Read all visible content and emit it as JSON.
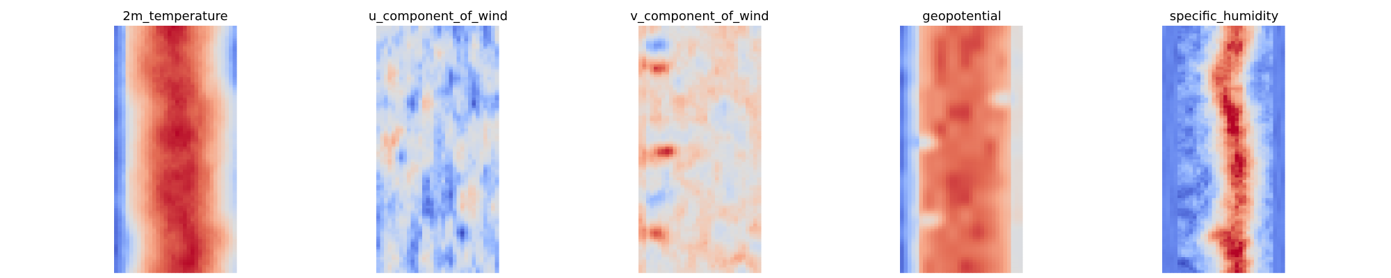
{
  "chart_data": {
    "type": "heatmap",
    "colormap": "coolwarm",
    "colormap_stops": [
      "#3b4cc0",
      "#6788ee",
      "#9abbff",
      "#c9d7f0",
      "#dddddd",
      "#f2cbb7",
      "#f7a889",
      "#e26952",
      "#b40426"
    ],
    "axes": "off",
    "grid": false,
    "legend": "none",
    "panels": [
      {
        "title": "2m_temperature",
        "pattern": "temperature"
      },
      {
        "title": "u_component_of_wind",
        "pattern": "u_wind"
      },
      {
        "title": "v_component_of_wind",
        "pattern": "v_wind"
      },
      {
        "title": "geopotential",
        "pattern": "geopotential"
      },
      {
        "title": "specific_humidity",
        "pattern": "humidity"
      }
    ]
  }
}
